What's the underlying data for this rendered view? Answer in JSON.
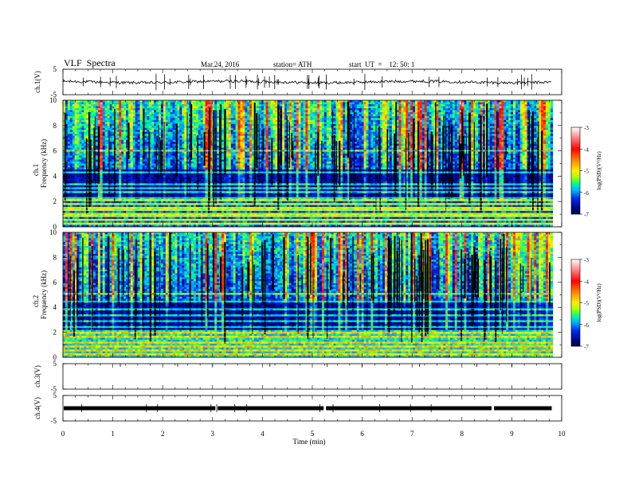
{
  "header": {
    "title": "VLF  Spectra",
    "date": "Mar.24, 2016",
    "station": "station= ATH",
    "start": "start  UT  =    12: 50: 1"
  },
  "chart_data": [
    {
      "type": "line",
      "panel": "ch1-waveform",
      "ylabel": "ch.1(V)",
      "yticks": [
        "5",
        "-5"
      ],
      "ylim": [
        -5,
        5
      ],
      "xlim": [
        0,
        10
      ],
      "data_end_min": 9.8,
      "approx_level": 0,
      "color": "#000000"
    },
    {
      "type": "heatmap",
      "panel": "ch1-spectrogram",
      "ylabel": "ch.1",
      "ylabel2": "Frequency  (kHz)",
      "yticks": [
        "0",
        "2",
        "4",
        "6",
        "8",
        "10"
      ],
      "ylim": [
        0,
        10
      ],
      "xlim": [
        0,
        10
      ],
      "colorbar_label": "log(PSD)(V²/Hz)",
      "colorbar_ticks": [
        "-3",
        "-4",
        "-5",
        "-6",
        "-7"
      ],
      "colorbar_range": [
        -7,
        -3
      ],
      "colorscale": [
        "#000000",
        "#0000a0",
        "#0030ff",
        "#00c8ff",
        "#00ff80",
        "#b0ff00",
        "#ffff00",
        "#ff8000",
        "#ff0000",
        "#ffffff"
      ]
    },
    {
      "type": "heatmap",
      "panel": "ch2-spectrogram",
      "ylabel": "ch.2",
      "ylabel2": "Frequency  (kHz)",
      "yticks": [
        "0",
        "2",
        "4",
        "6",
        "8",
        "10"
      ],
      "ylim": [
        0,
        10
      ],
      "xlim": [
        0,
        10
      ],
      "colorbar_label": "log(PSD)(V²/Hz)",
      "colorbar_ticks": [
        "-3",
        "-4",
        "-5",
        "-6",
        "-7"
      ],
      "colorbar_range": [
        -7,
        -3
      ]
    },
    {
      "type": "line",
      "panel": "ch3-waveform",
      "ylabel": "ch.3(V)",
      "yticks": [
        "5",
        "-5"
      ],
      "ylim": [
        -5,
        5
      ],
      "xlim": [
        0,
        10
      ]
    },
    {
      "type": "line",
      "panel": "ch4-waveform",
      "ylabel": "ch.4(V)",
      "yticks": [
        "5",
        "-5"
      ],
      "ylim": [
        -5,
        5
      ],
      "xlim": [
        0,
        10
      ],
      "data_end_min": 9.8,
      "approx_level": 0
    }
  ],
  "xaxis": {
    "label": "Time  (min)",
    "ticks": [
      "0",
      "1",
      "2",
      "3",
      "4",
      "5",
      "6",
      "7",
      "8",
      "9",
      "10"
    ]
  }
}
